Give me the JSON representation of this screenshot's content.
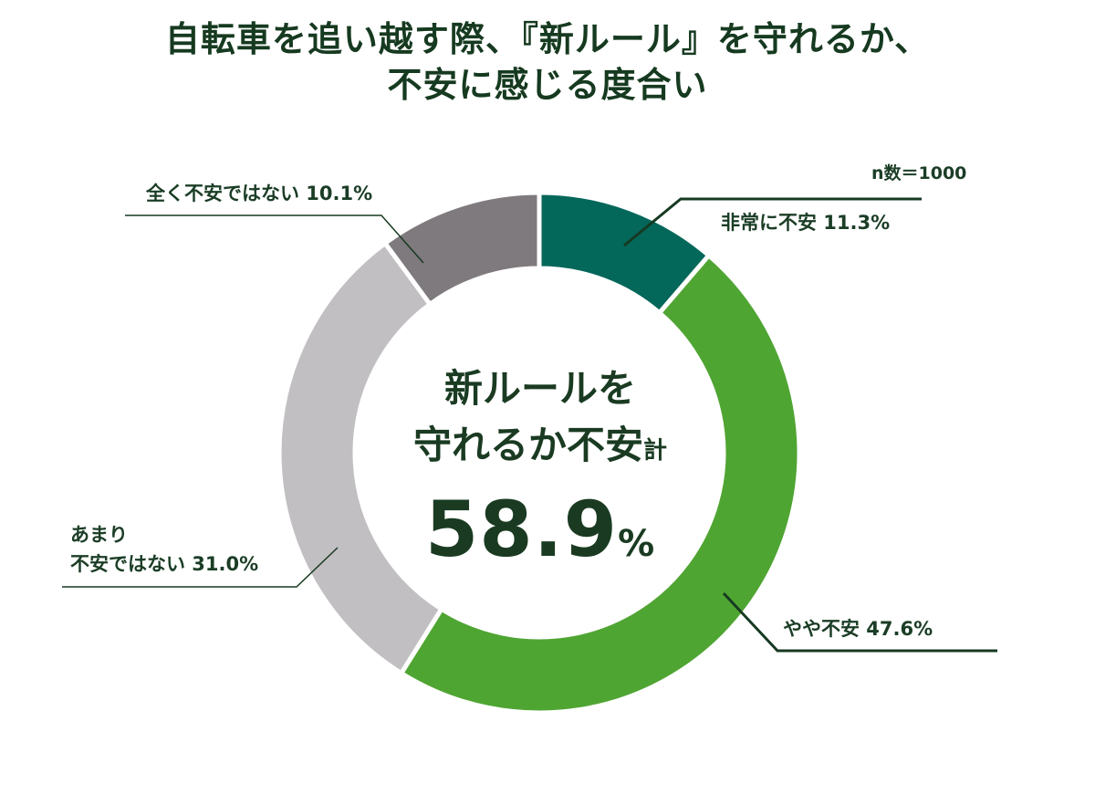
{
  "title": {
    "line1": "自転車を追い越す際、『新ルール』を守れるか、",
    "line2": "不安に感じる度合い"
  },
  "sample_size": "n数＝1000",
  "center": {
    "line1": "新ルールを",
    "line2_main": "守れるか不安",
    "line2_suffix": "計",
    "value": "58.9",
    "unit": "%"
  },
  "labels": {
    "very_anxious": "非常に不安 11.3%",
    "somewhat_anxious": "やや不安 47.6%",
    "not_very_anxious_line1": "あまり",
    "not_very_anxious_line2": "不安ではない 31.0%",
    "not_anxious_at_all": "全く不安ではない 10.1%"
  },
  "colors": {
    "very_anxious": "#03675a",
    "somewhat_anxious": "#4fa532",
    "not_very_anxious": "#c2bfc3",
    "not_anxious_at_all": "#7f7a7e",
    "text": "#1b3d26"
  },
  "chart_data": {
    "type": "pie",
    "variant": "donut",
    "title": "自転車を追い越す際、『新ルール』を守れるか、不安に感じる度合い",
    "n": 1000,
    "categories": [
      "非常に不安",
      "やや不安",
      "あまり不安ではない",
      "全く不安ではない"
    ],
    "values": [
      11.3,
      47.6,
      31.0,
      10.1
    ],
    "unit": "%",
    "center_annotation": "新ルールを守れるか不安計 58.9%",
    "start_angle": "12 o'clock, clockwise",
    "colors": [
      "#03675a",
      "#4fa532",
      "#c2bfc3",
      "#7f7a7e"
    ]
  }
}
